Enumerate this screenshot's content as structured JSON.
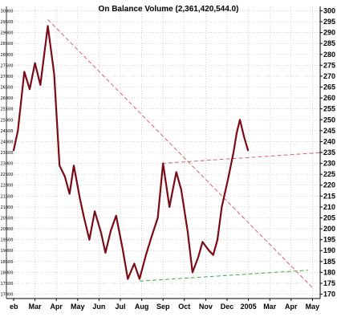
{
  "chart_data": {
    "type": "line",
    "title": "On Balance Volume (2,361,420,544.0)",
    "xlabel": "",
    "ylabel": "",
    "x_ticks": [
      "Feb",
      "Mar",
      "Apr",
      "May",
      "Jun",
      "Jul",
      "Aug",
      "Sep",
      "Oct",
      "Nov",
      "Dec",
      "2005",
      "Mar",
      "Apr",
      "May"
    ],
    "x_tick_labels_shown": [
      "eb",
      "Mar",
      "Apr",
      "May",
      "Jun",
      "Jul",
      "Aug",
      "Sep",
      "Oct",
      "Nov",
      "Dec",
      "2005",
      "Mar",
      "Apr",
      "May"
    ],
    "xlim": [
      0,
      14.5
    ],
    "left_axis": {
      "ticks": [
        "30000",
        "29500",
        "29000",
        "28500",
        "28000",
        "27500",
        "27000",
        "26500",
        "26000",
        "25500",
        "25000",
        "24500",
        "24000",
        "23500",
        "23000",
        "22500",
        "22000",
        "21500",
        "21000",
        "20500",
        "20000",
        "19500",
        "19000",
        "18500",
        "18000",
        "17500",
        "17000"
      ],
      "ylim": [
        16800,
        30200
      ]
    },
    "right_axis": {
      "ticks": [
        300,
        295,
        290,
        285,
        280,
        275,
        270,
        265,
        260,
        255,
        250,
        245,
        240,
        235,
        230,
        225,
        220,
        215,
        210,
        205,
        200,
        195,
        190,
        185,
        180,
        175,
        170
      ],
      "ylim": [
        168,
        302
      ]
    },
    "grid": true,
    "series": [
      {
        "color": "#7a0a14",
        "points": [
          [
            0.0,
            23.6
          ],
          [
            0.2,
            24.5
          ],
          [
            0.5,
            27.2
          ],
          [
            0.75,
            26.4
          ],
          [
            1.0,
            27.6
          ],
          [
            1.25,
            26.6
          ],
          [
            1.6,
            29.3
          ],
          [
            1.9,
            27.1
          ],
          [
            2.15,
            22.9
          ],
          [
            2.4,
            22.4
          ],
          [
            2.62,
            21.6
          ],
          [
            2.82,
            22.9
          ],
          [
            3.1,
            21.4
          ],
          [
            3.3,
            20.5
          ],
          [
            3.55,
            19.5
          ],
          [
            3.8,
            20.8
          ],
          [
            4.1,
            19.8
          ],
          [
            4.3,
            18.9
          ],
          [
            4.55,
            19.9
          ],
          [
            4.8,
            20.6
          ],
          [
            5.1,
            19.1
          ],
          [
            5.35,
            17.7
          ],
          [
            5.65,
            18.4
          ],
          [
            5.9,
            17.7
          ],
          [
            6.2,
            18.8
          ],
          [
            6.45,
            19.6
          ],
          [
            6.75,
            20.5
          ],
          [
            7.0,
            23.0
          ],
          [
            7.3,
            21.0
          ],
          [
            7.62,
            22.6
          ],
          [
            7.85,
            21.8
          ],
          [
            8.15,
            19.9
          ],
          [
            8.38,
            18.0
          ],
          [
            8.65,
            18.7
          ],
          [
            8.85,
            19.4
          ],
          [
            9.15,
            19.0
          ],
          [
            9.35,
            18.8
          ],
          [
            9.55,
            19.5
          ],
          [
            9.75,
            21.0
          ],
          [
            10.05,
            22.3
          ],
          [
            10.3,
            23.5
          ],
          [
            10.45,
            24.4
          ],
          [
            10.6,
            25.0
          ],
          [
            10.8,
            24.2
          ],
          [
            10.98,
            23.6
          ]
        ]
      }
    ],
    "trendlines": [
      {
        "color": "#e06060",
        "style": "dashed",
        "from": [
          1.6,
          29.6
        ],
        "to": [
          14.0,
          17.3
        ]
      },
      {
        "color": "#e06060",
        "style": "dashed",
        "from": [
          6.95,
          23.0
        ],
        "to": [
          14.5,
          23.5
        ]
      },
      {
        "color": "#44aa44",
        "style": "dashed",
        "from": [
          5.9,
          17.6
        ],
        "to": [
          13.8,
          18.1
        ]
      }
    ]
  }
}
